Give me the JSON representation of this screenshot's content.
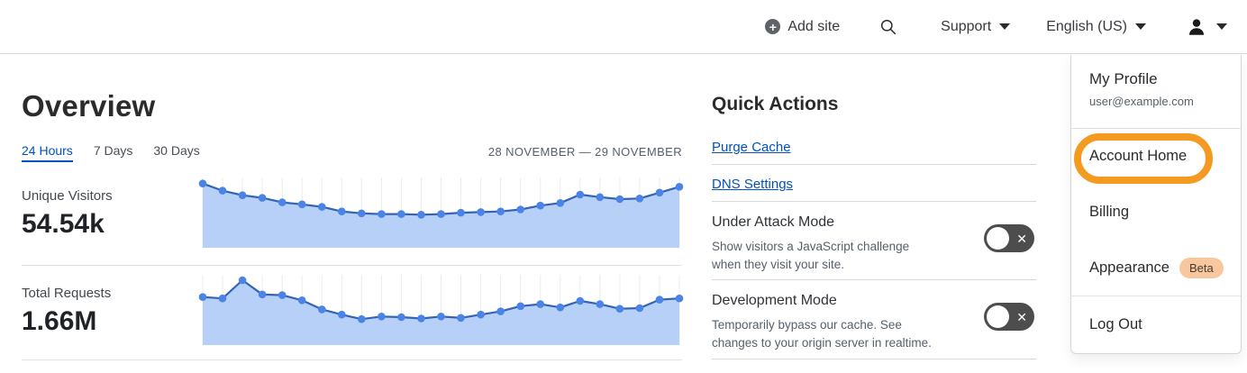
{
  "header": {
    "add_site_label": "Add site",
    "support_label": "Support",
    "language_label": "English (US)"
  },
  "overview": {
    "title": "Overview",
    "tabs": [
      {
        "label": "24 Hours",
        "active": true
      },
      {
        "label": "7 Days",
        "active": false
      },
      {
        "label": "30 Days",
        "active": false
      }
    ],
    "date_range": "28 NOVEMBER — 29 NOVEMBER",
    "stats": [
      {
        "label": "Unique Visitors",
        "value": "54.54k"
      },
      {
        "label": "Total Requests",
        "value": "1.66M"
      }
    ]
  },
  "chart_data": [
    {
      "type": "area",
      "title": "Unique Visitors",
      "stat_value": "54.54k",
      "x_description": "25 hourly points, 28 November — 29 November",
      "values": [
        99,
        88,
        81,
        77,
        70,
        67,
        63,
        56,
        53,
        52,
        52,
        51,
        52,
        54,
        55,
        56,
        59,
        65,
        69,
        82,
        78,
        75,
        76,
        85,
        94
      ],
      "ylim": [
        0,
        100
      ],
      "grid": "vertical",
      "legend": "none"
    },
    {
      "type": "area",
      "title": "Total Requests",
      "stat_value": "1.66M",
      "x_description": "25 hourly points, 28 November — 29 November",
      "values": [
        74,
        72,
        100,
        78,
        77,
        69,
        55,
        47,
        40,
        44,
        43,
        41,
        44,
        42,
        47,
        52,
        60,
        63,
        58,
        68,
        63,
        56,
        57,
        70,
        72
      ],
      "ylim": [
        0,
        100
      ],
      "grid": "vertical",
      "legend": "none"
    }
  ],
  "quick_actions": {
    "title": "Quick Actions",
    "links": [
      {
        "label": "Purge Cache"
      },
      {
        "label": "DNS Settings"
      }
    ],
    "toggles": [
      {
        "title": "Under Attack Mode",
        "description": "Show visitors a JavaScript challenge when they visit your site.",
        "state": "off"
      },
      {
        "title": "Development Mode",
        "description": "Temporarily bypass our cache. See changes to your origin server in realtime.",
        "state": "off"
      }
    ]
  },
  "account_menu": {
    "profile_label": "My Profile",
    "email": "user@example.com",
    "items": [
      {
        "label": "Account Home",
        "highlighted": true
      },
      {
        "label": "Billing"
      },
      {
        "label": "Appearance",
        "badge": "Beta"
      },
      {
        "label": "Log Out"
      }
    ]
  },
  "colors": {
    "accent_blue": "#0051c3",
    "chart_line": "#3263b4",
    "chart_fill": "#b7d0f7",
    "chart_dot": "#4b84e6",
    "chart_grid": "#ececec",
    "toggle_bg": "#4d4d4d",
    "annotation_orange": "#f49a20",
    "beta_badge_bg": "#f8c79d"
  }
}
